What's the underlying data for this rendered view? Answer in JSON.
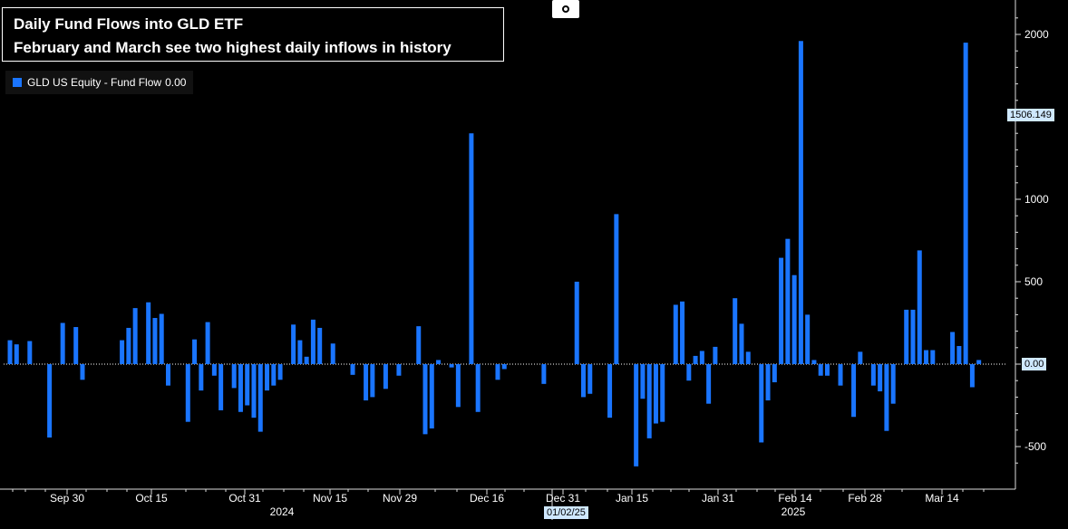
{
  "title": "Daily Fund Flows into GLD ETF",
  "subtitle": "February and March see two highest daily inflows in history",
  "legend": {
    "label": "GLD US Equity - Fund Flow",
    "value": "0.00"
  },
  "last_value_tag": "1506.149",
  "zero_tag": "0.00",
  "cursor_date_tag": "01/02/25",
  "colors": {
    "bar": "#1a75ff",
    "background": "#000000",
    "tag": "#cfe8ff",
    "axis": "#dddddd"
  },
  "chart_data": {
    "type": "bar",
    "title": "Daily Fund Flows into GLD ETF",
    "subtitle": "February and March see two highest daily inflows in history",
    "series_name": "GLD US Equity - Fund Flow",
    "ylim": [
      -700,
      2150
    ],
    "yticks": [
      -500,
      500,
      1000,
      2000
    ],
    "x_tick_labels": [
      "Sep 30",
      "Oct 15",
      "Oct 31",
      "Nov 15",
      "Nov 29",
      "Dec 16",
      "Dec 31",
      "Jan 15",
      "Jan 31",
      "Feb 14",
      "Feb 28",
      "Mar 14"
    ],
    "x_year_labels": [
      "2024",
      "2025"
    ],
    "values": [
      145,
      120,
      0,
      140,
      0,
      0,
      -445,
      0,
      250,
      0,
      225,
      -95,
      0,
      0,
      0,
      0,
      0,
      145,
      220,
      340,
      0,
      375,
      280,
      305,
      -130,
      0,
      0,
      -350,
      150,
      -160,
      255,
      -70,
      -280,
      0,
      -145,
      -290,
      -250,
      -325,
      -410,
      -160,
      -130,
      -95,
      0,
      240,
      145,
      45,
      270,
      220,
      0,
      125,
      0,
      0,
      -65,
      0,
      -220,
      -200,
      0,
      -150,
      0,
      -70,
      0,
      0,
      230,
      -425,
      -390,
      25,
      0,
      -20,
      -260,
      0,
      1400,
      -290,
      0,
      0,
      -95,
      -30,
      0,
      0,
      0,
      0,
      0,
      -120,
      0,
      0,
      0,
      0,
      500,
      -200,
      -180,
      0,
      0,
      -325,
      910,
      0,
      0,
      -620,
      -210,
      -450,
      -360,
      -350,
      0,
      360,
      380,
      -100,
      50,
      80,
      -240,
      105,
      0,
      0,
      400,
      245,
      75,
      0,
      -475,
      -220,
      -110,
      645,
      760,
      540,
      1960,
      300,
      25,
      -70,
      -70,
      0,
      -130,
      0,
      -320,
      75,
      0,
      -130,
      -165,
      -405,
      -240,
      0,
      330,
      330,
      690,
      85,
      85,
      0,
      0,
      195,
      110,
      1950,
      -140,
      25
    ]
  }
}
